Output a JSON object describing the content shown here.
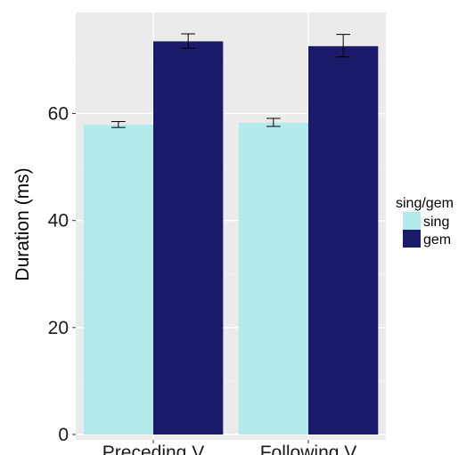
{
  "chart_data": {
    "type": "bar",
    "categories": [
      "Preceding V",
      "Following V"
    ],
    "series": [
      {
        "name": "sing",
        "color": "#b3ebec",
        "values": [
          57.9,
          58.3
        ],
        "error": [
          [
            57.4,
            58.5
          ],
          [
            57.6,
            59.1
          ]
        ]
      },
      {
        "name": "gem",
        "color": "#1c1b6b",
        "values": [
          73.5,
          72.6
        ],
        "error": [
          [
            72.2,
            74.9
          ],
          [
            70.6,
            74.8
          ]
        ]
      }
    ],
    "title": "",
    "xlabel": "",
    "ylabel": "Duration (ms)",
    "ylim": [
      -1,
      78.9
    ],
    "yticks": [
      0,
      20,
      40,
      60
    ],
    "legend_title": "sing/gem",
    "legend_position": "right",
    "grid": true,
    "panel_background": "#ebebeb"
  }
}
